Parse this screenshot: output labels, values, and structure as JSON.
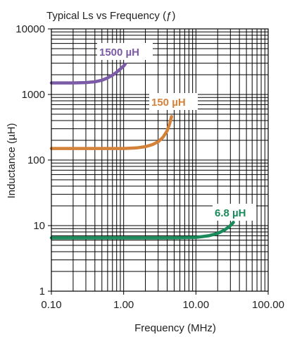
{
  "chart_data": {
    "type": "line",
    "title": "Typical Ls vs Frequency (ƒ)",
    "xlabel": "Frequency (MHz)",
    "ylabel": "Inductance (µH)",
    "x_scale": "log",
    "y_scale": "log",
    "xlim": [
      0.1,
      100
    ],
    "ylim": [
      1,
      10000
    ],
    "x_tick_labels": [
      "0.10",
      "1.00",
      "10.00",
      "100.00"
    ],
    "y_tick_labels": [
      "1",
      "10",
      "100",
      "1000",
      "10000"
    ],
    "grid": true,
    "series": [
      {
        "name": "1500 µH",
        "color": "#7b5aa6",
        "x": [
          0.1,
          0.2,
          0.3,
          0.4,
          0.5,
          0.6,
          0.7,
          0.8,
          0.9,
          1.0,
          1.05
        ],
        "y": [
          1500,
          1500,
          1520,
          1560,
          1650,
          1790,
          1970,
          2180,
          2450,
          2720,
          2900
        ]
      },
      {
        "name": "150 µH",
        "color": "#d4813a",
        "x": [
          0.1,
          0.5,
          1.0,
          1.5,
          2.0,
          2.5,
          3.0,
          3.5,
          4.0,
          4.3,
          4.6
        ],
        "y": [
          150,
          150,
          150,
          153,
          160,
          172,
          190,
          222,
          280,
          350,
          460
        ]
      },
      {
        "name": "6.8 µH",
        "color": "#1a8a5a",
        "x": [
          0.1,
          1.0,
          5.0,
          10,
          15,
          20,
          25,
          30,
          33
        ],
        "y": [
          6.5,
          6.5,
          6.5,
          6.6,
          7.0,
          7.6,
          8.6,
          10.0,
          11.2
        ]
      }
    ]
  }
}
